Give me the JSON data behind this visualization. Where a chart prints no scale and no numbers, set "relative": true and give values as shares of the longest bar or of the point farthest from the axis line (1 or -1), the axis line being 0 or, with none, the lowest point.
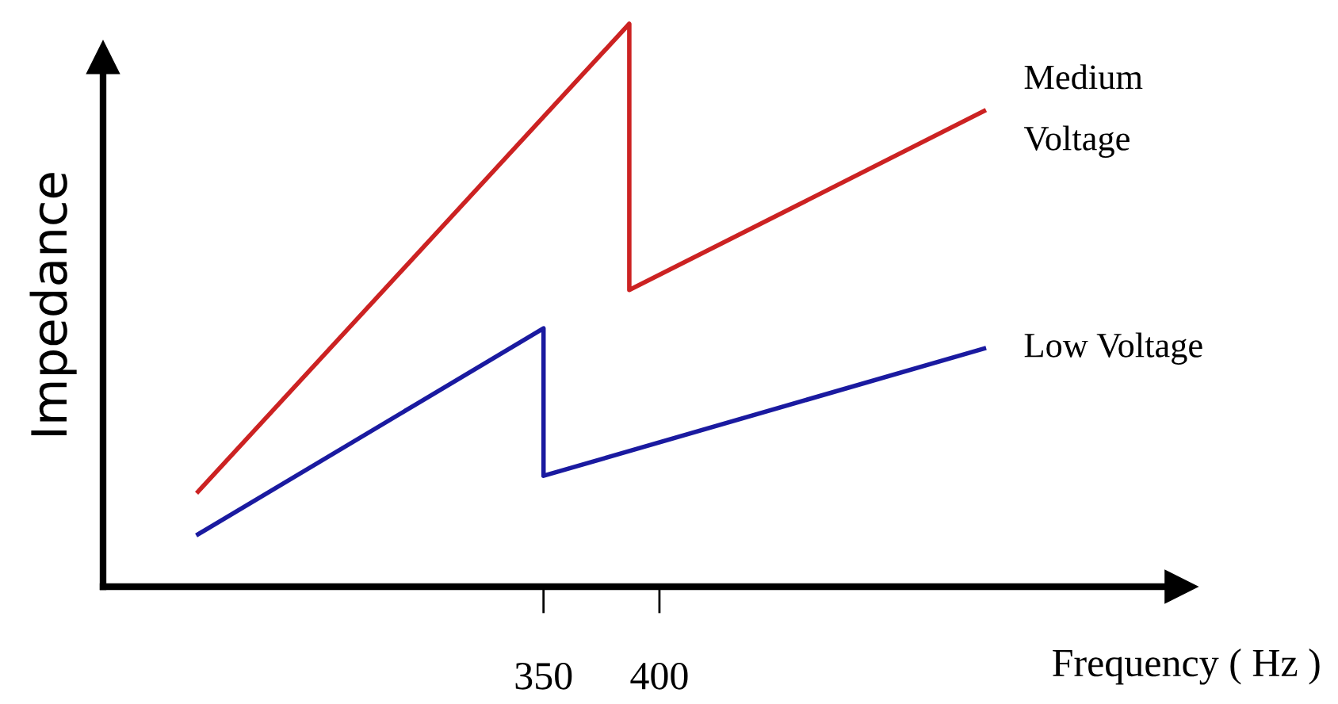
{
  "chart_data": {
    "type": "line",
    "relative": true,
    "xlabel": "Frequency ( Hz )",
    "ylabel": "Impedance",
    "xlim": [
      160,
      625
    ],
    "xticks": [
      350,
      400
    ],
    "grid": false,
    "legend": false,
    "marker": "none",
    "line_style": "solid",
    "series": [
      {
        "name": "Medium\nVoltage",
        "color": "#cc2222",
        "x": [
          201,
          387,
          387,
          540
        ],
        "values": [
          0.169,
          1,
          0.527,
          0.845
        ]
      },
      {
        "name": "Low Voltage",
        "color": "#1a1aa0",
        "x": [
          201,
          350,
          350,
          540
        ],
        "values": [
          0.093,
          0.459,
          0.197,
          0.423
        ]
      }
    ]
  }
}
